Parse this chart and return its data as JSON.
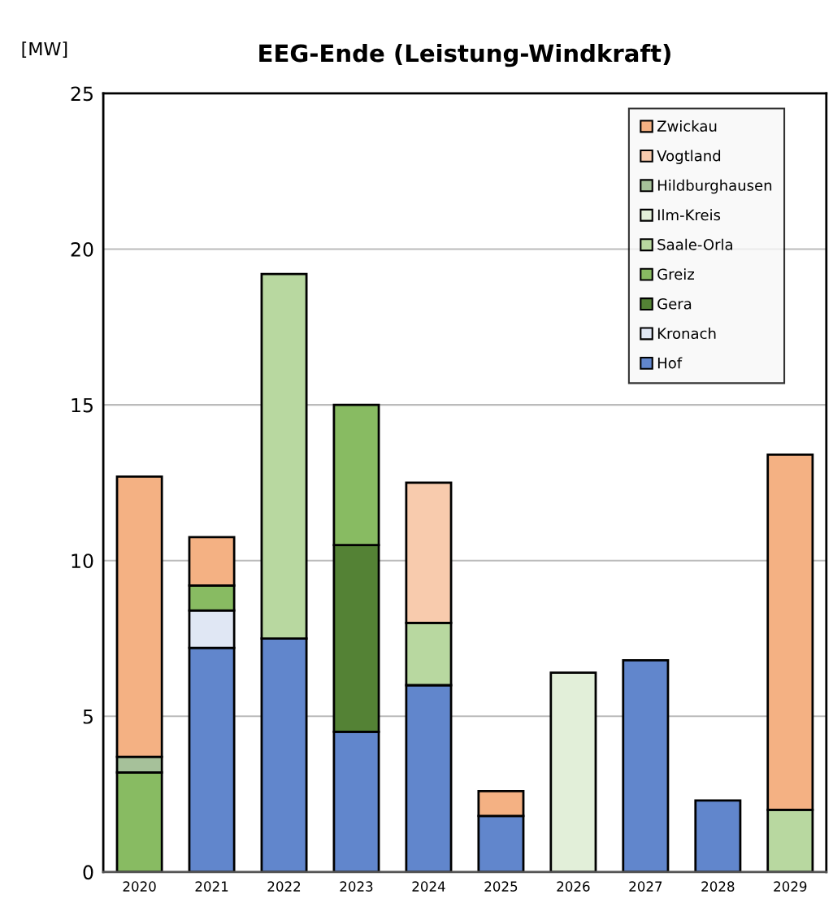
{
  "chart_data": {
    "type": "bar",
    "title": "EEG-Ende (Leistung-Windkraft)",
    "ylabel": "[MW]",
    "stacked": true,
    "categories": [
      "2020",
      "2021",
      "2022",
      "2023",
      "2024",
      "2025",
      "2026",
      "2027",
      "2028",
      "2029"
    ],
    "series": [
      {
        "name": "Hof",
        "color": "#6186cc",
        "values": [
          null,
          7.2,
          7.5,
          4.5,
          6.0,
          1.8,
          null,
          6.8,
          2.3,
          null
        ]
      },
      {
        "name": "Kronach",
        "color": "#e0e7f4",
        "values": [
          null,
          1.2,
          null,
          null,
          null,
          null,
          null,
          null,
          null,
          null
        ]
      },
      {
        "name": "Gera",
        "color": "#548235",
        "values": [
          null,
          null,
          null,
          6.0,
          null,
          null,
          null,
          null,
          null,
          null
        ]
      },
      {
        "name": "Greiz",
        "color": "#88bb62",
        "values": [
          3.2,
          0.8,
          null,
          4.5,
          null,
          null,
          null,
          null,
          null,
          null
        ]
      },
      {
        "name": "Saale-Orla",
        "color": "#b8d8a0",
        "values": [
          null,
          null,
          11.7,
          null,
          2.0,
          null,
          null,
          null,
          null,
          2.0
        ]
      },
      {
        "name": "Ilm-Kreis",
        "color": "#e2efd9",
        "values": [
          null,
          null,
          null,
          null,
          null,
          null,
          6.4,
          null,
          null,
          null
        ]
      },
      {
        "name": "Hildburghausen",
        "color": "#a6c19a",
        "values": [
          0.5,
          null,
          null,
          null,
          null,
          null,
          null,
          null,
          null,
          null
        ]
      },
      {
        "name": "Vogtland",
        "color": "#f8cbad",
        "values": [
          null,
          null,
          null,
          null,
          4.5,
          null,
          null,
          null,
          null,
          null
        ]
      },
      {
        "name": "Zwickau",
        "color": "#f4b183",
        "values": [
          9.0,
          1.55,
          null,
          null,
          null,
          0.8,
          null,
          null,
          null,
          11.4
        ]
      }
    ],
    "ylim": [
      0,
      25
    ],
    "yticks": [
      0,
      5,
      10,
      15,
      20,
      25
    ],
    "grid": "y",
    "legend": "top right"
  }
}
